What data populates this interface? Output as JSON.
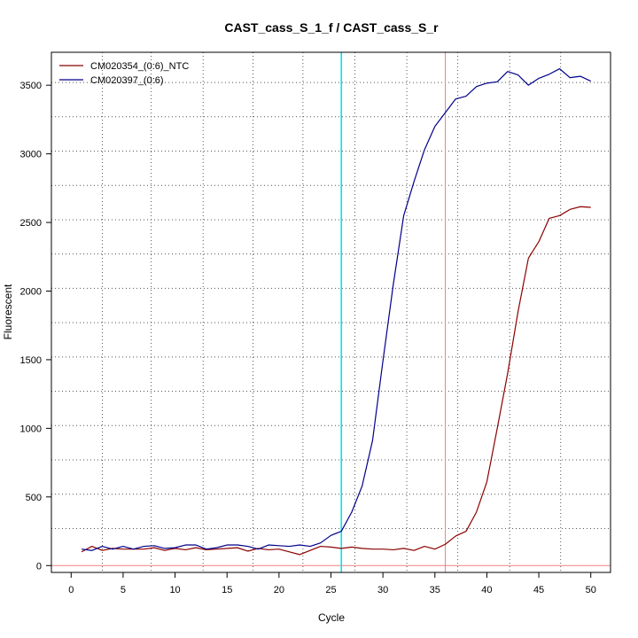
{
  "chart_data": {
    "type": "line",
    "title": "CAST_cass_S_1_f / CAST_cass_S_r",
    "xlabel": "Cycle",
    "ylabel": "Fluorescent",
    "xlim": [
      -1.9,
      51.9
    ],
    "ylim": [
      -50,
      3740
    ],
    "xticks": [
      0,
      5,
      10,
      15,
      20,
      25,
      30,
      35,
      40,
      45,
      50
    ],
    "yticks": [
      0,
      500,
      1000,
      1500,
      2000,
      2500,
      3000,
      3500
    ],
    "grid": true,
    "legend_position": "top-left",
    "vertical_grid": [
      3,
      7.7,
      12.7,
      17.5,
      22.3,
      27.3,
      32.3,
      37.2,
      42.2,
      47.1
    ],
    "horizontal_grid": [
      270,
      520,
      770,
      1020,
      1270,
      1520,
      1770,
      2020,
      2270,
      2520,
      2770,
      3020,
      3270,
      3520
    ],
    "reference_lines": {
      "baseline_y": 0,
      "baseline_color": "#f08080",
      "threshold_x_cyan": 26,
      "threshold_x_cyan_color": "#00e5ee",
      "threshold_x_red": 36,
      "threshold_x_red_color": "#f08080"
    },
    "series": [
      {
        "name": "CM020354_(0:6)_NTC",
        "color": "#8b0000",
        "x": [
          1,
          2,
          3,
          4,
          5,
          6,
          7,
          8,
          9,
          10,
          11,
          12,
          13,
          14,
          15,
          16,
          17,
          18,
          19,
          20,
          21,
          22,
          23,
          24,
          25,
          26,
          27,
          28,
          29,
          30,
          31,
          32,
          33,
          34,
          35,
          36,
          37,
          38,
          39,
          40,
          41,
          42,
          43,
          44,
          45,
          46,
          47,
          48,
          49,
          50
        ],
        "y": [
          100,
          140,
          110,
          125,
          120,
          120,
          120,
          130,
          110,
          125,
          115,
          130,
          115,
          120,
          125,
          130,
          105,
          125,
          115,
          120,
          100,
          80,
          110,
          140,
          135,
          125,
          135,
          125,
          120,
          120,
          115,
          125,
          110,
          140,
          120,
          155,
          215,
          250,
          390,
          610,
          1000,
          1400,
          1850,
          2240,
          2360,
          2530,
          2550,
          2595,
          2615,
          2610
        ]
      },
      {
        "name": "CM020397_(0:6)",
        "color": "#00008b",
        "x": [
          1,
          2,
          3,
          4,
          5,
          6,
          7,
          8,
          9,
          10,
          11,
          12,
          13,
          14,
          15,
          16,
          17,
          18,
          19,
          20,
          21,
          22,
          23,
          24,
          25,
          26,
          27,
          28,
          29,
          30,
          31,
          32,
          33,
          34,
          35,
          36,
          37,
          38,
          39,
          40,
          41,
          42,
          43,
          44,
          45,
          46,
          47,
          48,
          49,
          50
        ],
        "y": [
          120,
          110,
          140,
          120,
          140,
          120,
          140,
          145,
          125,
          130,
          150,
          150,
          120,
          130,
          150,
          150,
          140,
          120,
          150,
          145,
          140,
          150,
          140,
          165,
          220,
          250,
          390,
          580,
          910,
          1490,
          2050,
          2550,
          2800,
          3030,
          3200,
          3300,
          3400,
          3420,
          3490,
          3515,
          3525,
          3600,
          3575,
          3500,
          3550,
          3580,
          3620,
          3555,
          3565,
          3530
        ]
      }
    ]
  }
}
